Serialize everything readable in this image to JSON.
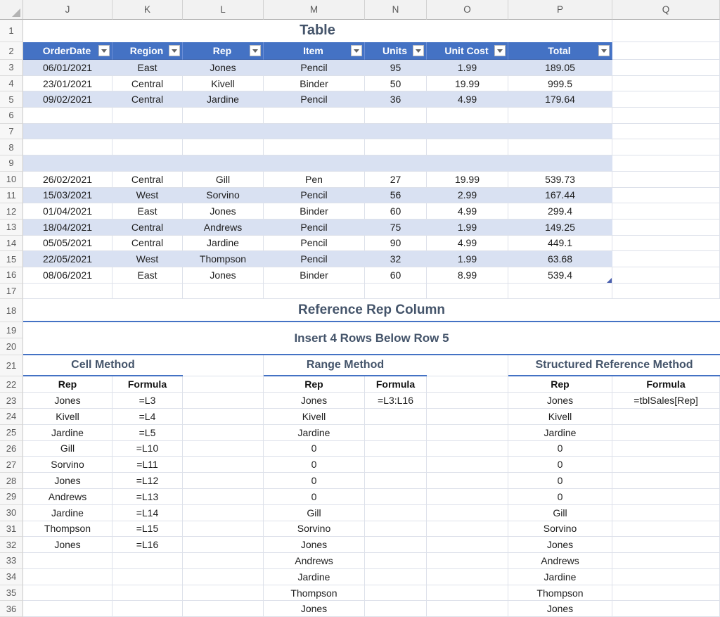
{
  "colors": {
    "header_fill": "#4472C4",
    "header_text": "#FFFFFF",
    "band_fill": "#D9E1F2",
    "heading_text": "#44546A",
    "rule_blue": "#4472C4",
    "grid_line": "#dde1ea"
  },
  "sheet": {
    "columns": [
      "J",
      "K",
      "L",
      "M",
      "N",
      "O",
      "P",
      "Q"
    ],
    "row_numbers": [
      "1",
      "2",
      "3",
      "4",
      "5",
      "6",
      "7",
      "8",
      "9",
      "10",
      "11",
      "12",
      "13",
      "14",
      "15",
      "16",
      "17",
      "18",
      "19",
      "20",
      "21",
      "22",
      "23",
      "24",
      "25",
      "26",
      "27",
      "28",
      "29",
      "30",
      "31",
      "32",
      "33",
      "34",
      "35",
      "36"
    ]
  },
  "table": {
    "title": "Table",
    "headers": [
      "OrderDate",
      "Region",
      "Rep",
      "Item",
      "Units",
      "Unit Cost",
      "Total"
    ],
    "rows": [
      {
        "banded": true,
        "cells": [
          "06/01/2021",
          "East",
          "Jones",
          "Pencil",
          "95",
          "1.99",
          "189.05"
        ]
      },
      {
        "banded": false,
        "cells": [
          "23/01/2021",
          "Central",
          "Kivell",
          "Binder",
          "50",
          "19.99",
          "999.5"
        ]
      },
      {
        "banded": true,
        "cells": [
          "09/02/2021",
          "Central",
          "Jardine",
          "Pencil",
          "36",
          "4.99",
          "179.64"
        ]
      },
      {
        "banded": false,
        "cells": [
          "",
          "",
          "",
          "",
          "",
          "",
          ""
        ]
      },
      {
        "banded": true,
        "cells": [
          "",
          "",
          "",
          "",
          "",
          "",
          ""
        ]
      },
      {
        "banded": false,
        "cells": [
          "",
          "",
          "",
          "",
          "",
          "",
          ""
        ]
      },
      {
        "banded": true,
        "cells": [
          "",
          "",
          "",
          "",
          "",
          "",
          ""
        ]
      },
      {
        "banded": false,
        "cells": [
          "26/02/2021",
          "Central",
          "Gill",
          "Pen",
          "27",
          "19.99",
          "539.73"
        ]
      },
      {
        "banded": true,
        "cells": [
          "15/03/2021",
          "West",
          "Sorvino",
          "Pencil",
          "56",
          "2.99",
          "167.44"
        ]
      },
      {
        "banded": false,
        "cells": [
          "01/04/2021",
          "East",
          "Jones",
          "Binder",
          "60",
          "4.99",
          "299.4"
        ]
      },
      {
        "banded": true,
        "cells": [
          "18/04/2021",
          "Central",
          "Andrews",
          "Pencil",
          "75",
          "1.99",
          "149.25"
        ]
      },
      {
        "banded": false,
        "cells": [
          "05/05/2021",
          "Central",
          "Jardine",
          "Pencil",
          "90",
          "4.99",
          "449.1"
        ]
      },
      {
        "banded": true,
        "cells": [
          "22/05/2021",
          "West",
          "Thompson",
          "Pencil",
          "32",
          "1.99",
          "63.68"
        ]
      },
      {
        "banded": false,
        "cells": [
          "08/06/2021",
          "East",
          "Jones",
          "Binder",
          "60",
          "8.99",
          "539.4"
        ]
      }
    ]
  },
  "sections": {
    "reference_heading": "Reference Rep Column",
    "insert_heading": "Insert 4 Rows Below Row 5",
    "methods": [
      {
        "title": "Cell Method",
        "rep_header": "Rep",
        "formula_header": "Formula"
      },
      {
        "title": "Range Method",
        "rep_header": "Rep",
        "formula_header": "Formula"
      },
      {
        "title": "Structured Reference Method",
        "rep_header": "Rep",
        "formula_header": "Formula"
      }
    ]
  },
  "methods": {
    "rows": [
      {
        "values": [
          "Jones",
          "=L3",
          "Jones",
          "=L3:L16",
          "Jones",
          "=tblSales[Rep]"
        ]
      },
      {
        "values": [
          "Kivell",
          "=L4",
          "Kivell",
          "",
          "Kivell",
          ""
        ]
      },
      {
        "values": [
          "Jardine",
          "=L5",
          "Jardine",
          "",
          "Jardine",
          ""
        ]
      },
      {
        "values": [
          "Gill",
          "=L10",
          "0",
          "",
          "0",
          ""
        ]
      },
      {
        "values": [
          "Sorvino",
          "=L11",
          "0",
          "",
          "0",
          ""
        ]
      },
      {
        "values": [
          "Jones",
          "=L12",
          "0",
          "",
          "0",
          ""
        ]
      },
      {
        "values": [
          "Andrews",
          "=L13",
          "0",
          "",
          "0",
          ""
        ]
      },
      {
        "values": [
          "Jardine",
          "=L14",
          "Gill",
          "",
          "Gill",
          ""
        ]
      },
      {
        "values": [
          "Thompson",
          "=L15",
          "Sorvino",
          "",
          "Sorvino",
          ""
        ]
      },
      {
        "values": [
          "Jones",
          "=L16",
          "Jones",
          "",
          "Jones",
          ""
        ]
      },
      {
        "values": [
          "",
          "",
          "Andrews",
          "",
          "Andrews",
          ""
        ]
      },
      {
        "values": [
          "",
          "",
          "Jardine",
          "",
          "Jardine",
          ""
        ]
      },
      {
        "values": [
          "",
          "",
          "Thompson",
          "",
          "Thompson",
          ""
        ]
      },
      {
        "values": [
          "",
          "",
          "Jones",
          "",
          "Jones",
          ""
        ]
      }
    ]
  }
}
